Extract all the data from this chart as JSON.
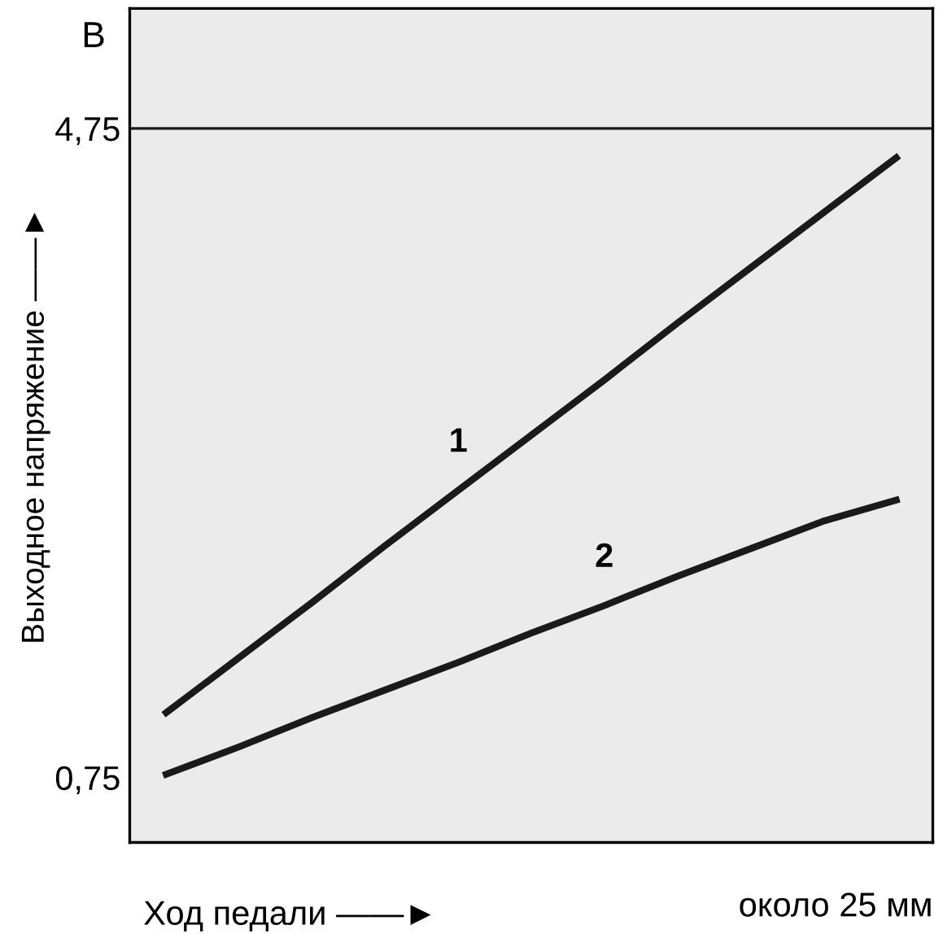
{
  "chart_data": {
    "type": "line",
    "xlabel": "Ход педали ——►",
    "ylabel": "Выходное напряжение ——►",
    "categories": [
      null,
      null,
      null,
      null,
      null,
      null,
      null,
      null,
      null,
      null,
      null
    ],
    "series": [
      {
        "name": "1",
        "color": "#1a1a1a",
        "values": [
          1.15,
          1.49,
          1.83,
          2.18,
          2.52,
          2.86,
          3.2,
          3.55,
          3.89,
          4.23,
          4.57
        ]
      },
      {
        "name": "2",
        "color": "#1a1a1a",
        "values": [
          0.77,
          0.94,
          1.12,
          1.29,
          1.46,
          1.64,
          1.81,
          1.99,
          2.16,
          2.33,
          2.46
        ]
      }
    ],
    "ylim": [
      0.35,
      5.49
    ],
    "yticks": [
      {
        "value": 0.75,
        "label": "0,75"
      },
      {
        "value": 4.75,
        "label": "4,75"
      }
    ],
    "ref_lines": [
      {
        "axis": "y",
        "value": 4.75,
        "color": "#1a1a1a"
      }
    ],
    "annotations": [
      "В",
      "около 25 мм"
    ],
    "grid": false,
    "legend": false,
    "marker": "none",
    "line_style": "solid"
  }
}
